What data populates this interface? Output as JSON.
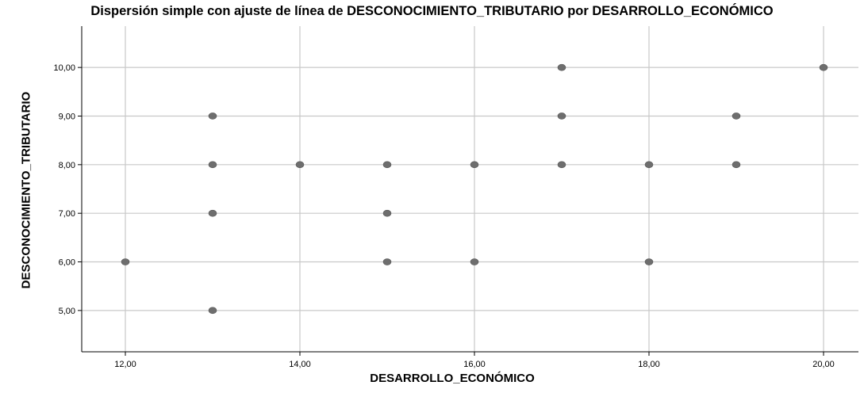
{
  "chart_data": {
    "type": "scatter",
    "title": "Dispersión simple con ajuste de línea de DESCONOCIMIENTO_TRIBUTARIO por DESARROLLO_ECONÓMICO",
    "xlabel": "DESARROLLO_ECONÓMICO",
    "ylabel": "DESCONOCIMIENTO_TRIBUTARIO",
    "x_ticks": [
      "12,00",
      "14,00",
      "16,00",
      "18,00",
      "20,00"
    ],
    "y_ticks": [
      "5,00",
      "6,00",
      "7,00",
      "8,00",
      "9,00",
      "10,00"
    ],
    "grid": true,
    "point_color": "#6e6e6e",
    "points": [
      {
        "x": 12,
        "y": 6
      },
      {
        "x": 13,
        "y": 5
      },
      {
        "x": 13,
        "y": 7
      },
      {
        "x": 13,
        "y": 8
      },
      {
        "x": 13,
        "y": 9
      },
      {
        "x": 14,
        "y": 8
      },
      {
        "x": 15,
        "y": 6
      },
      {
        "x": 15,
        "y": 7
      },
      {
        "x": 15,
        "y": 8
      },
      {
        "x": 16,
        "y": 6
      },
      {
        "x": 16,
        "y": 8
      },
      {
        "x": 17,
        "y": 8
      },
      {
        "x": 17,
        "y": 9
      },
      {
        "x": 17,
        "y": 10
      },
      {
        "x": 18,
        "y": 6
      },
      {
        "x": 18,
        "y": 8
      },
      {
        "x": 19,
        "y": 8
      },
      {
        "x": 19,
        "y": 9
      },
      {
        "x": 20,
        "y": 10
      }
    ]
  }
}
